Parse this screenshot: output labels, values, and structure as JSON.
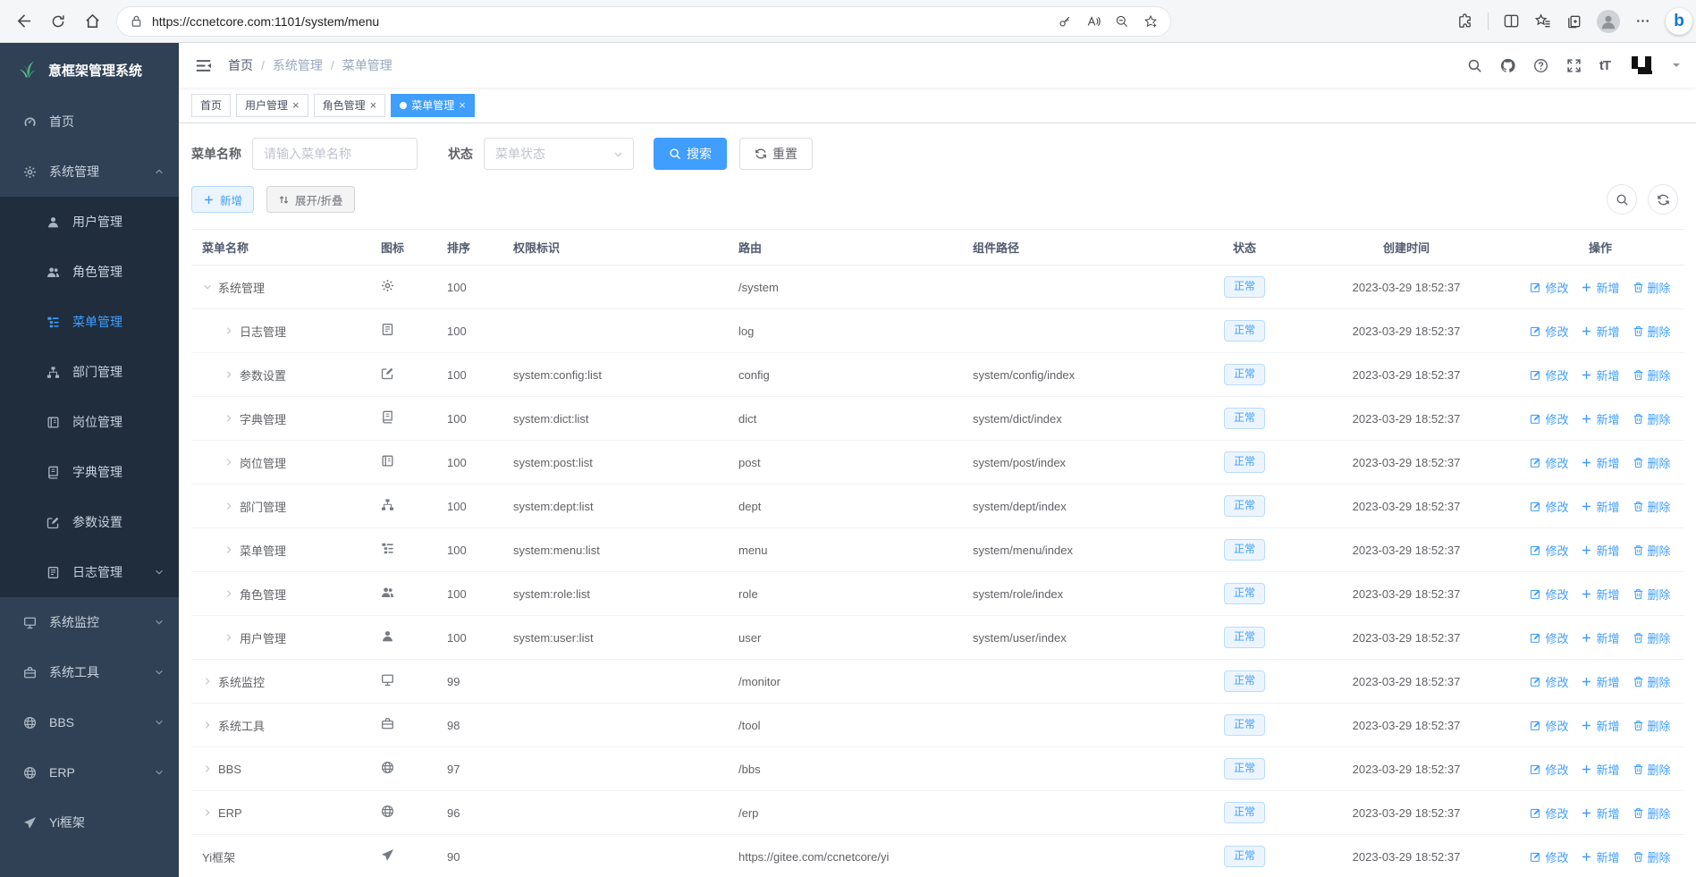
{
  "browser": {
    "url": "https://ccnetcore.com:1101/system/menu",
    "nav_icons": [
      "back-icon",
      "refresh-icon",
      "home-icon"
    ],
    "urlbar_icons": [
      "lock-icon",
      "password-key-icon",
      "read-aloud-icon",
      "zoom-out-icon",
      "favorite-star-icon"
    ],
    "right_icons": [
      "extensions-icon",
      "split-screen-icon",
      "favorites-icon",
      "collections-icon",
      "profile-avatar",
      "more-icon",
      "copilot-icon"
    ],
    "copilot_letter": "b"
  },
  "sidebar": {
    "logo_title": "意框架管理系统",
    "items": [
      {
        "key": "home",
        "label": "首页",
        "icon": "dashboard-icon"
      },
      {
        "key": "system",
        "label": "系统管理",
        "icon": "gear-icon",
        "expanded": true,
        "children": [
          {
            "key": "user-mgmt",
            "label": "用户管理",
            "icon": "user-icon"
          },
          {
            "key": "role-mgmt",
            "label": "角色管理",
            "icon": "users-icon"
          },
          {
            "key": "menu-mgmt",
            "label": "菜单管理",
            "icon": "list-icon",
            "active": true
          },
          {
            "key": "dept-mgmt",
            "label": "部门管理",
            "icon": "tree-icon"
          },
          {
            "key": "post-mgmt",
            "label": "岗位管理",
            "icon": "badge-icon"
          },
          {
            "key": "dict-mgmt",
            "label": "字典管理",
            "icon": "book-icon"
          },
          {
            "key": "config",
            "label": "参数设置",
            "icon": "edit-icon"
          },
          {
            "key": "log-mgmt",
            "label": "日志管理",
            "icon": "log-icon",
            "has_children": true
          }
        ]
      },
      {
        "key": "monitor",
        "label": "系统监控",
        "icon": "monitor-icon",
        "has_children": true
      },
      {
        "key": "tool",
        "label": "系统工具",
        "icon": "toolbox-icon",
        "has_children": true
      },
      {
        "key": "bbs",
        "label": "BBS",
        "icon": "globe-icon",
        "has_children": true
      },
      {
        "key": "erp",
        "label": "ERP",
        "icon": "globe-icon",
        "has_children": true
      },
      {
        "key": "yi-framework",
        "label": "Yi框架",
        "icon": "send-icon"
      }
    ]
  },
  "header": {
    "breadcrumb": [
      "首页",
      "系统管理",
      "菜单管理"
    ],
    "right_icons": [
      "search-icon",
      "github-icon",
      "question-icon",
      "fullscreen-icon",
      "font-size-icon",
      "user-logo",
      "caret-down-icon"
    ],
    "font_size_glyph": "tT"
  },
  "tabs": [
    {
      "key": "home",
      "label": "首页",
      "closable": false,
      "active": false
    },
    {
      "key": "user-mgmt",
      "label": "用户管理",
      "closable": true,
      "active": false
    },
    {
      "key": "role-mgmt",
      "label": "角色管理",
      "closable": true,
      "active": false
    },
    {
      "key": "menu-mgmt",
      "label": "菜单管理",
      "closable": true,
      "active": true
    }
  ],
  "filters": {
    "name_label": "菜单名称",
    "name_placeholder": "请输入菜单名称",
    "name_value": "",
    "status_label": "状态",
    "status_placeholder": "菜单状态",
    "search_label": "搜索",
    "reset_label": "重置"
  },
  "toolbar": {
    "add_label": "新增",
    "toggle_label": "展开/折叠"
  },
  "table": {
    "columns": [
      "菜单名称",
      "图标",
      "排序",
      "权限标识",
      "路由",
      "组件路径",
      "状态",
      "创建时间",
      "操作"
    ],
    "ops": {
      "edit": "修改",
      "add": "新增",
      "delete": "删除"
    },
    "rows": [
      {
        "name": "系统管理",
        "icon": "gear-icon",
        "arrow": "expanded",
        "level": 0,
        "sort": "100",
        "perm": "",
        "route": "/system",
        "component": "",
        "status": "正常",
        "created": "2023-03-29 18:52:37"
      },
      {
        "name": "日志管理",
        "icon": "log-icon",
        "arrow": "collapsed",
        "level": 1,
        "sort": "100",
        "perm": "",
        "route": "log",
        "component": "",
        "status": "正常",
        "created": "2023-03-29 18:52:37"
      },
      {
        "name": "参数设置",
        "icon": "edit-icon",
        "arrow": "collapsed",
        "level": 1,
        "sort": "100",
        "perm": "system:config:list",
        "route": "config",
        "component": "system/config/index",
        "status": "正常",
        "created": "2023-03-29 18:52:37"
      },
      {
        "name": "字典管理",
        "icon": "book-icon",
        "arrow": "collapsed",
        "level": 1,
        "sort": "100",
        "perm": "system:dict:list",
        "route": "dict",
        "component": "system/dict/index",
        "status": "正常",
        "created": "2023-03-29 18:52:37"
      },
      {
        "name": "岗位管理",
        "icon": "badge-icon",
        "arrow": "collapsed",
        "level": 1,
        "sort": "100",
        "perm": "system:post:list",
        "route": "post",
        "component": "system/post/index",
        "status": "正常",
        "created": "2023-03-29 18:52:37"
      },
      {
        "name": "部门管理",
        "icon": "tree-icon",
        "arrow": "collapsed",
        "level": 1,
        "sort": "100",
        "perm": "system:dept:list",
        "route": "dept",
        "component": "system/dept/index",
        "status": "正常",
        "created": "2023-03-29 18:52:37"
      },
      {
        "name": "菜单管理",
        "icon": "list-icon",
        "arrow": "collapsed",
        "level": 1,
        "sort": "100",
        "perm": "system:menu:list",
        "route": "menu",
        "component": "system/menu/index",
        "status": "正常",
        "created": "2023-03-29 18:52:37"
      },
      {
        "name": "角色管理",
        "icon": "users-icon",
        "arrow": "collapsed",
        "level": 1,
        "sort": "100",
        "perm": "system:role:list",
        "route": "role",
        "component": "system/role/index",
        "status": "正常",
        "created": "2023-03-29 18:52:37"
      },
      {
        "name": "用户管理",
        "icon": "user-icon",
        "arrow": "collapsed",
        "level": 1,
        "sort": "100",
        "perm": "system:user:list",
        "route": "user",
        "component": "system/user/index",
        "status": "正常",
        "created": "2023-03-29 18:52:37"
      },
      {
        "name": "系统监控",
        "icon": "monitor-icon",
        "arrow": "collapsed",
        "level": 0,
        "sort": "99",
        "perm": "",
        "route": "/monitor",
        "component": "",
        "status": "正常",
        "created": "2023-03-29 18:52:37"
      },
      {
        "name": "系统工具",
        "icon": "toolbox-icon",
        "arrow": "collapsed",
        "level": 0,
        "sort": "98",
        "perm": "",
        "route": "/tool",
        "component": "",
        "status": "正常",
        "created": "2023-03-29 18:52:37"
      },
      {
        "name": "BBS",
        "icon": "globe-icon",
        "arrow": "collapsed",
        "level": 0,
        "sort": "97",
        "perm": "",
        "route": "/bbs",
        "component": "",
        "status": "正常",
        "created": "2023-03-29 18:52:37"
      },
      {
        "name": "ERP",
        "icon": "globe-icon",
        "arrow": "collapsed",
        "level": 0,
        "sort": "96",
        "perm": "",
        "route": "/erp",
        "component": "",
        "status": "正常",
        "created": "2023-03-29 18:52:37"
      },
      {
        "name": "Yi框架",
        "icon": "send-icon",
        "arrow": null,
        "level": 0,
        "sort": "90",
        "perm": "",
        "route": "https://gitee.com/ccnetcore/yi",
        "component": "",
        "status": "正常",
        "created": "2023-03-29 18:52:37"
      }
    ]
  },
  "colors": {
    "accent": "#409eff",
    "sidebar_bg": "#304156",
    "sidebar_sub_bg": "#1f2d3d",
    "badge_bg": "#ecf5ff",
    "badge_border": "#b9dcff"
  }
}
